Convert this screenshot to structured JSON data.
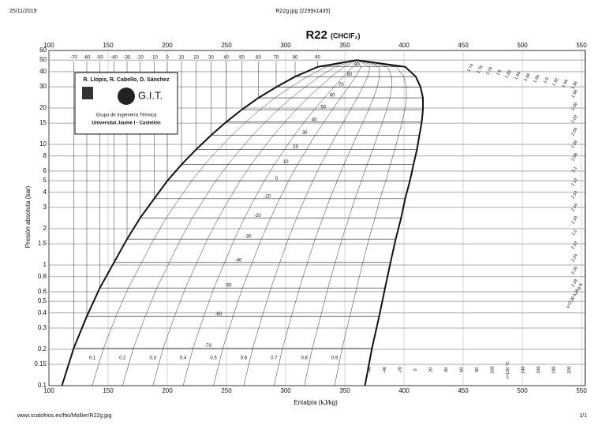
{
  "header": {
    "date": "25/11/2019",
    "file": "R22g.jpg (2299x1435)"
  },
  "footer": {
    "url": "www.scalofrios.es/ftio/Mollier/R22g.jpg",
    "page": "1/1"
  },
  "logo": {
    "authors": "R. Llopis, R. Cabello, D. Sánchez",
    "brand": "G.I.T.",
    "group": "Grupo de Ingeniería Térmica",
    "university": "Universitat Jaume I - Castellón"
  },
  "chart_data": {
    "type": "line",
    "title": "R22",
    "subtitle": "(CHClF₂)",
    "x_label": "Entalpía (kJ/kg)",
    "y_label": "Presión absoluta (bar)",
    "yscale": "log",
    "grid": true,
    "xlim": [
      100,
      553
    ],
    "ylim": [
      0.1,
      60
    ],
    "xticks": [
      100,
      150,
      200,
      250,
      300,
      350,
      400,
      450,
      500,
      550
    ],
    "yticks": [
      0.1,
      0.15,
      0.2,
      0.3,
      0.4,
      0.5,
      0.6,
      0.8,
      1,
      1.5,
      2,
      3,
      4,
      5,
      6,
      8,
      10,
      15,
      20,
      30,
      40,
      50,
      60
    ],
    "series": [
      {
        "color": "#111111",
        "x": [
          111,
          121,
          132,
          143,
          155,
          166,
          177,
          189,
          200,
          212,
          224.5,
          237,
          249.7,
          263,
          277,
          292,
          308,
          327,
          360
        ],
        "values": [
          0.1,
          0.205,
          0.375,
          0.645,
          1.05,
          1.64,
          2.45,
          3.55,
          4.98,
          6.8,
          9.1,
          11.9,
          15.3,
          19.4,
          24.3,
          29.8,
          36.4,
          43.9,
          49.9
        ]
      },
      {
        "color": "#111111",
        "x": [
          367,
          373,
          379,
          384,
          388.6,
          393,
          397.5,
          401,
          405,
          408,
          411,
          413,
          415,
          416,
          416,
          414,
          410,
          401,
          360
        ],
        "values": [
          0.1,
          0.205,
          0.375,
          0.645,
          1.05,
          1.64,
          2.45,
          3.55,
          4.98,
          6.8,
          9.1,
          11.9,
          15.3,
          19.4,
          24.3,
          29.8,
          36.4,
          43.9,
          49.9
        ]
      }
    ],
    "isotherms": {
      "values": [
        -70,
        -60,
        -50,
        -40,
        -30,
        -20,
        -10,
        0,
        10,
        20,
        30,
        40,
        50,
        60,
        70,
        80,
        90
      ],
      "p": [
        0.205,
        0.375,
        0.645,
        1.05,
        1.64,
        2.45,
        3.55,
        4.98,
        6.8,
        9.1,
        11.9,
        15.3,
        19.4,
        24.3,
        29.8,
        36.4,
        43.9
      ],
      "h_liquid": [
        121,
        132,
        143,
        155,
        166,
        177,
        189,
        200,
        212,
        224.5,
        237,
        249.7,
        263,
        277,
        292,
        308,
        327
      ],
      "h_vapor": [
        373,
        379,
        384,
        388.6,
        393,
        397.5,
        401,
        405,
        408,
        411,
        413,
        415,
        416,
        416,
        414,
        410,
        401
      ]
    },
    "qualities": [
      0.1,
      0.2,
      0.3,
      0.4,
      0.5,
      0.6,
      0.7,
      0.8,
      0.9
    ],
    "entropy_labels": [
      "1.74",
      "1.76",
      "1.78",
      "1.8",
      "1.82",
      "1.84",
      "1.86",
      "1.88",
      "1.9",
      "1.92",
      "1.94",
      "1.96",
      "1.98",
      "2.00",
      "2.02",
      "2.04",
      "2.06",
      "2.08",
      "2.1",
      "2.12",
      "2.14",
      "2.16",
      "2.18",
      "2.2",
      "2.22",
      "2.24",
      "2.26",
      "2.28",
      "s=2.30 kJ/kg K"
    ],
    "vapor_isotherm_labels": [
      "-60",
      "-40",
      "-20",
      "0",
      "20",
      "40",
      "60",
      "80",
      "100",
      "t=120 °C",
      "140",
      "160",
      "180",
      "200"
    ]
  }
}
